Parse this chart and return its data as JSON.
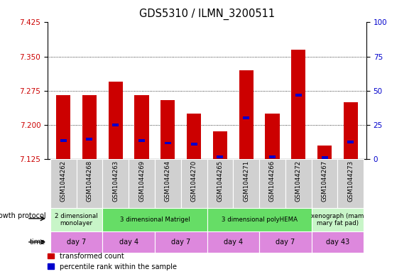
{
  "title": "GDS5310 / ILMN_3200511",
  "samples": [
    "GSM1044262",
    "GSM1044268",
    "GSM1044263",
    "GSM1044269",
    "GSM1044264",
    "GSM1044270",
    "GSM1044265",
    "GSM1044271",
    "GSM1044266",
    "GSM1044272",
    "GSM1044267",
    "GSM1044273"
  ],
  "red_values": [
    7.265,
    7.265,
    7.295,
    7.265,
    7.255,
    7.225,
    7.185,
    7.32,
    7.225,
    7.365,
    7.155,
    7.25
  ],
  "blue_values": [
    7.165,
    7.168,
    7.2,
    7.165,
    7.16,
    7.158,
    7.13,
    7.215,
    7.13,
    7.265,
    7.128,
    7.163
  ],
  "ylim_left": [
    7.125,
    7.425
  ],
  "ylim_right": [
    0,
    100
  ],
  "yticks_left": [
    7.125,
    7.2,
    7.275,
    7.35,
    7.425
  ],
  "yticks_right": [
    0,
    25,
    50,
    75,
    100
  ],
  "bar_color": "#cc0000",
  "marker_color": "#0000cc",
  "bar_bottom": 7.125,
  "groups": [
    {
      "label": "2 dimensional\nmonolayer",
      "start": 0,
      "end": 2,
      "color": "#c8f5c8"
    },
    {
      "label": "3 dimensional Matrigel",
      "start": 2,
      "end": 6,
      "color": "#66dd66"
    },
    {
      "label": "3 dimensional polyHEMA",
      "start": 6,
      "end": 10,
      "color": "#66dd66"
    },
    {
      "label": "xenograph (mam\nmary fat pad)",
      "start": 10,
      "end": 12,
      "color": "#c8f5c8"
    }
  ],
  "time_groups": [
    {
      "label": "day 7",
      "start": 0,
      "end": 2
    },
    {
      "label": "day 4",
      "start": 2,
      "end": 4
    },
    {
      "label": "day 7",
      "start": 4,
      "end": 6
    },
    {
      "label": "day 4",
      "start": 6,
      "end": 8
    },
    {
      "label": "day 7",
      "start": 8,
      "end": 10
    },
    {
      "label": "day 43",
      "start": 10,
      "end": 12
    }
  ],
  "time_color": "#dd88dd",
  "grid_yticks": [
    7.2,
    7.275,
    7.35
  ],
  "left_label_color": "#cc0000",
  "right_label_color": "#0000cc",
  "sample_bg_color": "#d0d0d0"
}
